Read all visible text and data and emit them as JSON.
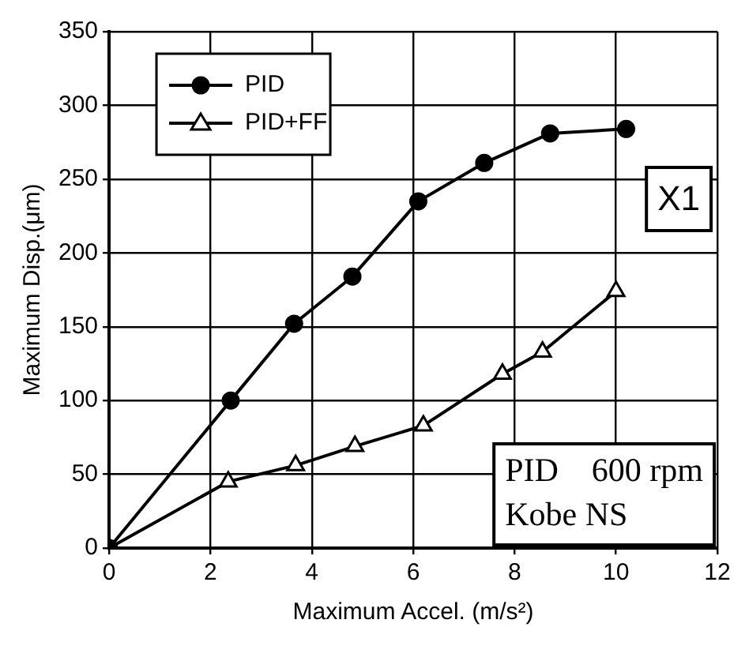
{
  "chart_data": {
    "type": "line",
    "xlabel": "Maximum Accel. (m/s²)",
    "ylabel": "Maximum Disp.(μm)",
    "xlim": [
      0,
      12
    ],
    "xticks": [
      0,
      2,
      4,
      6,
      8,
      10,
      12
    ],
    "ylim": [
      0,
      350
    ],
    "yticks": [
      0,
      50,
      100,
      150,
      200,
      250,
      300,
      350
    ],
    "grid": true,
    "legend": "top left",
    "line_style": "solid",
    "series": [
      {
        "name": "PID",
        "color": "#000000",
        "marker": "circle",
        "x": [
          0,
          2.4,
          3.65,
          4.8,
          6.1,
          7.4,
          8.7,
          10.2
        ],
        "values": [
          0,
          100,
          152,
          184,
          235,
          261,
          281,
          284
        ]
      },
      {
        "name": "PID+FF",
        "color": "#000000",
        "marker": "triangle",
        "x": [
          0,
          2.35,
          3.68,
          4.85,
          6.2,
          7.76,
          8.55,
          10
        ],
        "values": [
          0,
          45,
          56,
          69,
          83,
          118,
          133,
          174
        ]
      }
    ],
    "annotations": [
      "X1",
      "PID    600 rpm",
      "Kobe NS"
    ]
  }
}
